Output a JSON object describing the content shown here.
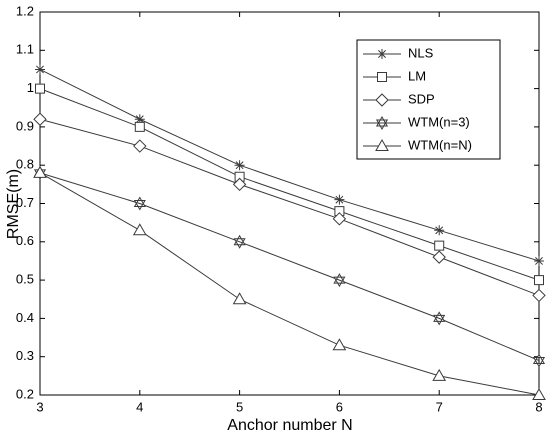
{
  "chart_data": {
    "type": "line",
    "xlabel": "Anchor number N",
    "ylabel": "RMSE(m)",
    "x": [
      3,
      4,
      5,
      6,
      7,
      8
    ],
    "series": [
      {
        "name": "NLS",
        "color": "#3a3a3a",
        "marker": "asterisk",
        "values": [
          1.05,
          0.92,
          0.8,
          0.71,
          0.63,
          0.55
        ]
      },
      {
        "name": "LM",
        "color": "#3a3a3a",
        "marker": "square",
        "values": [
          1.0,
          0.9,
          0.77,
          0.68,
          0.59,
          0.5
        ]
      },
      {
        "name": "SDP",
        "color": "#3a3a3a",
        "marker": "diamond",
        "values": [
          0.92,
          0.85,
          0.75,
          0.66,
          0.56,
          0.46
        ]
      },
      {
        "name": "WTM(n=3)",
        "color": "#3a3a3a",
        "marker": "hexagram",
        "values": [
          0.78,
          0.7,
          0.6,
          0.5,
          0.4,
          0.29
        ]
      },
      {
        "name": "WTM(n=N)",
        "color": "#3a3a3a",
        "marker": "triangle",
        "values": [
          0.78,
          0.63,
          0.45,
          0.33,
          0.25,
          0.2
        ]
      }
    ],
    "xlim": [
      3,
      8
    ],
    "xticks": [
      3,
      4,
      5,
      6,
      7,
      8
    ],
    "ylim": [
      0.2,
      1.2
    ],
    "yticks": [
      0.2,
      0.3,
      0.4,
      0.5,
      0.6,
      0.7,
      0.8,
      0.9,
      1,
      1.1,
      1.2
    ],
    "grid": false,
    "legend": "upper right"
  }
}
